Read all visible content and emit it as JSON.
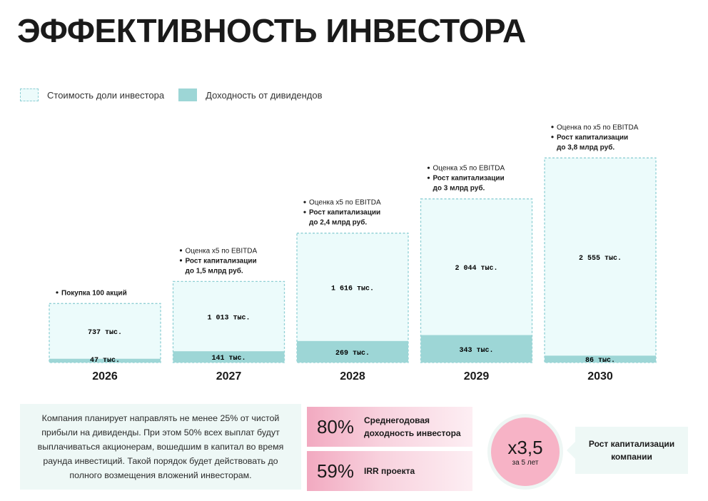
{
  "title": "ЭФФЕКТИВНОСТЬ ИНВЕСТОРА",
  "legend": {
    "value_label": "Стоимость доли инвестора",
    "dividends_label": "Доходность от дивидендов"
  },
  "colors": {
    "value_fill": "#ecfbfb",
    "value_border": "#8ecfd4",
    "dividends_fill": "#9dd6d6",
    "accent_pink": "#f7b3c6"
  },
  "chart_data": {
    "type": "bar",
    "stacked": true,
    "categories": [
      "2026",
      "2027",
      "2028",
      "2029",
      "2030"
    ],
    "series": [
      {
        "name": "Доходность от дивидендов",
        "values": [
          47,
          141,
          269,
          343,
          86
        ],
        "labels": [
          "47 тыс.",
          "141 тыс.",
          "269 тыс.",
          "343 тыс.",
          "86 тыс."
        ]
      },
      {
        "name": "Стоимость доли инвестора",
        "values": [
          737,
          1013,
          1616,
          2044,
          2555
        ],
        "labels": [
          "737 тыс.",
          "1 013 тыс.",
          "1 616 тыс.",
          "2 044 тыс.",
          "2 555 тыс."
        ]
      }
    ],
    "unit": "тыс.",
    "legend_position": "top-left",
    "annotations": [
      {
        "year": "2026",
        "lines": [
          {
            "text": "Покупка 100 акций",
            "bold": true,
            "bullet": true
          }
        ]
      },
      {
        "year": "2027",
        "lines": [
          {
            "text": "Оценка x5 по EBITDA",
            "bold": false,
            "bullet": true
          },
          {
            "text": "Рост капитализации",
            "bold": true,
            "bullet": true
          },
          {
            "text": "до 1,5 млрд руб.",
            "bold": true,
            "bullet": false
          }
        ]
      },
      {
        "year": "2028",
        "lines": [
          {
            "text": "Оценка x5 по EBITDA",
            "bold": false,
            "bullet": true
          },
          {
            "text": "Рост капитализации",
            "bold": true,
            "bullet": true
          },
          {
            "text": "до 2,4 млрд руб.",
            "bold": true,
            "bullet": false
          }
        ]
      },
      {
        "year": "2029",
        "lines": [
          {
            "text": "Оценка x5 по EBITDA",
            "bold": false,
            "bullet": true
          },
          {
            "text": "Рост капитализации",
            "bold": true,
            "bullet": true
          },
          {
            "text": "до 3 млрд руб.",
            "bold": true,
            "bullet": false
          }
        ]
      },
      {
        "year": "2030",
        "lines": [
          {
            "text": "Оценка по x5 по EBITDA",
            "bold": false,
            "bullet": true
          },
          {
            "text": "Рост капитализации",
            "bold": true,
            "bullet": true
          },
          {
            "text": "до 3,8 млрд руб.",
            "bold": true,
            "bullet": false
          }
        ]
      }
    ]
  },
  "description": "Компания планирует направлять не менее 25% от чистой прибыли на дивиденды. При этом 50% всех выплат будут выплачиваться акционерам, вошедшим в капитал во время раунда инвестиций. Такой порядок будет действовать до полного возмещения вложений инвесторам.",
  "stats": [
    {
      "value": "80%",
      "label_line1": "Среднегодовая",
      "label_line2": "доходность инвестора"
    },
    {
      "value": "59%",
      "label_line1": "IRR проекта",
      "label_line2": ""
    }
  ],
  "multiplier": {
    "value": "x3,5",
    "caption": "за 5 лет"
  },
  "growth": {
    "line1": "Рост капитализации",
    "line2": "компании"
  }
}
